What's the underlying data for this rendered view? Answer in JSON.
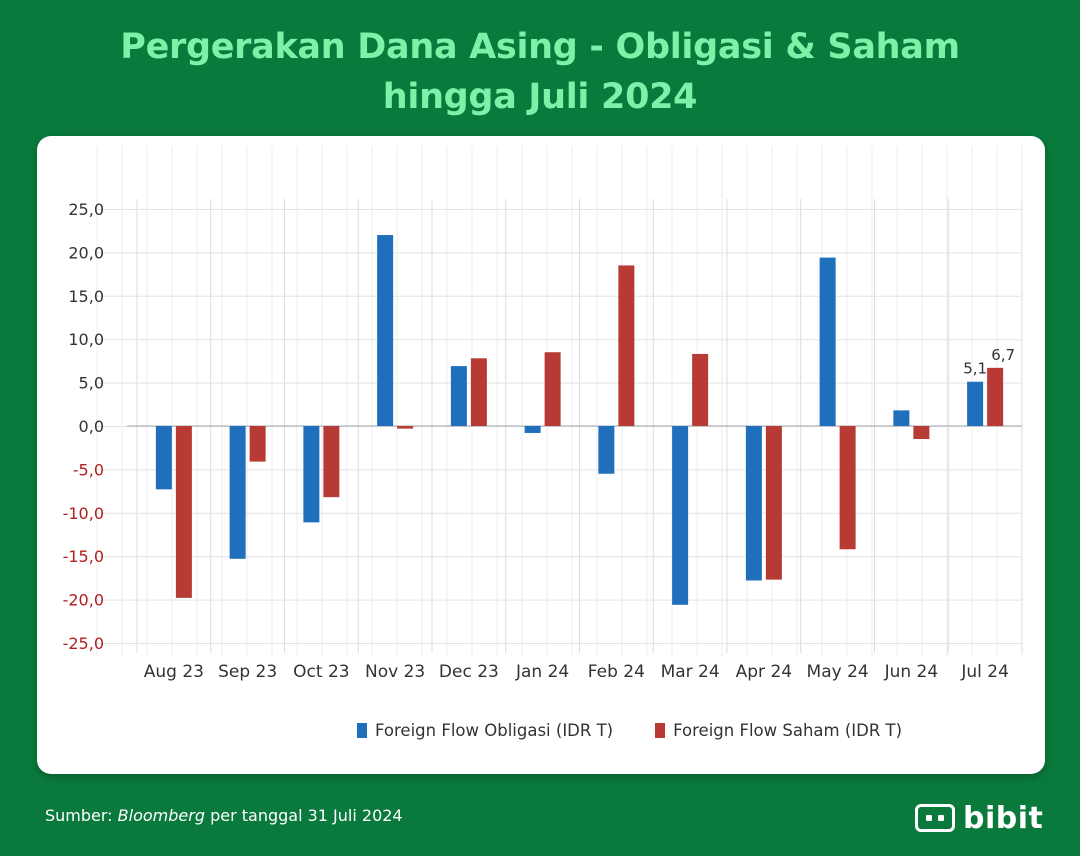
{
  "title_line1": "Pergerakan Dana Asing - Obligasi & Saham",
  "title_line2": "hingga Juli 2024",
  "footer": {
    "prefix": "Sumber: ",
    "source": "Bloomberg",
    "suffix": " per tanggal 31 Juli 2024"
  },
  "brand": {
    "name": "bibit",
    "icon": "bibit-logo-icon"
  },
  "colors": {
    "background": "#0a7a3c",
    "title": "#7ff0a8",
    "obligasi": "#1f6fbd",
    "saham": "#b83a35",
    "negative_tick": "#b21e1e"
  },
  "chart_data": {
    "type": "bar",
    "categories": [
      "Aug 23",
      "Sep 23",
      "Oct 23",
      "Nov 23",
      "Dec 23",
      "Jan 24",
      "Feb 24",
      "Mar 24",
      "Apr 24",
      "May 24",
      "Jun 24",
      "Jul 24"
    ],
    "series": [
      {
        "name": "Foreign Flow Obligasi (IDR T)",
        "color": "#1f6fbd",
        "values": [
          -7.3,
          -15.3,
          -11.1,
          22.0,
          6.9,
          -0.8,
          -5.5,
          -20.6,
          -17.8,
          19.4,
          1.8,
          5.1
        ]
      },
      {
        "name": "Foreign Flow Saham (IDR T)",
        "color": "#b83a35",
        "values": [
          -19.8,
          -4.1,
          -8.2,
          -0.3,
          7.8,
          8.5,
          18.5,
          8.3,
          -17.7,
          -14.2,
          -1.5,
          6.7
        ]
      }
    ],
    "data_labels": [
      {
        "category": "Jul 24",
        "series": 0,
        "text": "5,1"
      },
      {
        "category": "Jul 24",
        "series": 1,
        "text": "6,7"
      }
    ],
    "yticks": [
      "25,0",
      "20,0",
      "15,0",
      "10,0",
      "5,0",
      "0,0",
      "-5,0",
      "-10,0",
      "-15,0",
      "-20,0",
      "-25,0"
    ],
    "ylim": [
      -25,
      25
    ],
    "grid": true,
    "legend_position": "bottom"
  }
}
